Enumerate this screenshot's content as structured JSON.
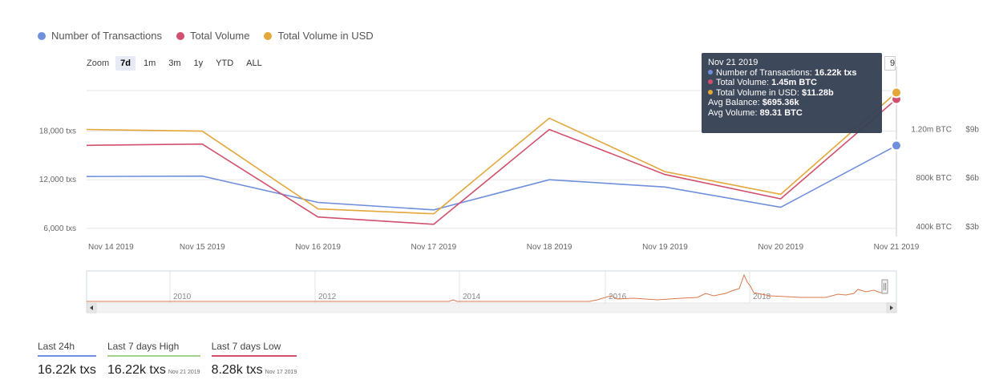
{
  "legend": [
    {
      "label": "Number of Transactions",
      "color": "#6f8fdd"
    },
    {
      "label": "Total Volume",
      "color": "#d2506e"
    },
    {
      "label": "Total Volume in USD",
      "color": "#e3a73a"
    }
  ],
  "zoom": {
    "label": "Zoom",
    "buttons": [
      "7d",
      "1m",
      "3m",
      "1y",
      "YTD",
      "ALL"
    ],
    "active": "7d"
  },
  "tooltip": {
    "date": "Nov 21 2019",
    "rows": [
      {
        "label": "Number of Transactions:",
        "value": "16.22k txs",
        "color": "#6f8fdd"
      },
      {
        "label": "Total Volume:",
        "value": "1.45m BTC",
        "color": "#d2506e"
      },
      {
        "label": "Total Volume in USD:",
        "value": "$11.28b",
        "color": "#e3a73a"
      }
    ],
    "extra": [
      {
        "label": "Avg Balance:",
        "value": "$695.36k"
      },
      {
        "label": "Avg Volume:",
        "value": "89.31 BTC"
      }
    ],
    "partial_label": "9"
  },
  "chart_data": {
    "type": "line",
    "categories": [
      "Nov 14 2019",
      "Nov 15 2019",
      "Nov 16 2019",
      "Nov 17 2019",
      "Nov 18 2019",
      "Nov 19 2019",
      "Nov 20 2019",
      "Nov 21 2019"
    ],
    "series": [
      {
        "name": "Number of Transactions",
        "color": "#6f8fdd",
        "axis": "left",
        "values": [
          12400,
          12450,
          9200,
          8280,
          12000,
          11100,
          8600,
          16220
        ]
      },
      {
        "name": "Total Volume",
        "color": "#d2506e",
        "axis": "btc",
        "values": [
          1070000,
          1080000,
          480000,
          420000,
          1200000,
          830000,
          630000,
          1450000
        ]
      },
      {
        "name": "Total Volume in USD",
        "color": "#e3a73a",
        "axis": "usd",
        "values": [
          9.0,
          8.9,
          4.1,
          3.8,
          9.7,
          6.4,
          5.0,
          11.28
        ]
      }
    ],
    "y_left": {
      "ticks": [
        "6,000 txs",
        "12,000 txs",
        "18,000 txs"
      ],
      "tick_values": [
        6000,
        12000,
        18000
      ],
      "range": [
        5000,
        23000
      ]
    },
    "y_btc": {
      "ticks": [
        "400k BTC",
        "800k BTC",
        "1.20m BTC"
      ],
      "tick_values": [
        400000,
        800000,
        1200000
      ],
      "range": [
        320000,
        1520000
      ]
    },
    "y_usd": {
      "ticks": [
        "$3b",
        "$6b",
        "$9b"
      ],
      "tick_values": [
        3,
        6,
        9
      ],
      "range": [
        2.4,
        11.4
      ]
    },
    "navigator": {
      "labels": [
        "2010",
        "2012",
        "2014",
        "2016",
        "2018"
      ],
      "series_color": "#d9784e"
    }
  },
  "stats": [
    {
      "label": "Last 24h",
      "value": "16.22k txs",
      "date": "",
      "color": "#6f8fdd"
    },
    {
      "label": "Last 7 days High",
      "value": "16.22k txs",
      "date": "Nov 21 2019",
      "color": "#9fd48a"
    },
    {
      "label": "Last 7 days Low",
      "value": "8.28k txs",
      "date": "Nov 17 2019",
      "color": "#d2506e"
    }
  ]
}
